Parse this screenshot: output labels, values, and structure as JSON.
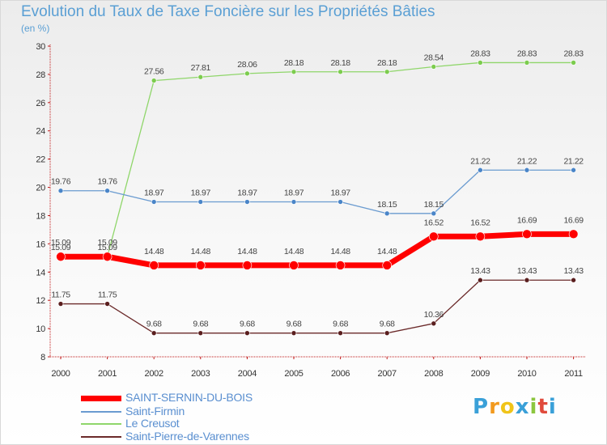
{
  "header": {
    "title": "Evolution du Taux de Taxe Foncière sur les Propriétés Bâties",
    "subtitle": "(en %)"
  },
  "logo": {
    "letters": [
      "P",
      "r",
      "o",
      "x",
      "i",
      "t",
      "i"
    ]
  },
  "chart_data": {
    "type": "line",
    "title": "Evolution du Taux de Taxe Foncière sur les Propriétés Bâties",
    "ylabel": "(en %)",
    "xlabel": "",
    "x": [
      "2000",
      "2001",
      "2002",
      "2003",
      "2004",
      "2005",
      "2006",
      "2007",
      "2008",
      "2009",
      "2010",
      "2011"
    ],
    "ylim": [
      8,
      30
    ],
    "yticks": [
      8,
      10,
      12,
      14,
      16,
      18,
      20,
      22,
      24,
      26,
      28,
      30
    ],
    "grid": false,
    "legend": "bottom-left",
    "series": [
      {
        "name": "SAINT-SERNIN-DU-BOIS",
        "color": "#ff0000",
        "values": [
          15.09,
          15.09,
          14.48,
          14.48,
          14.48,
          14.48,
          14.48,
          14.48,
          16.52,
          16.52,
          16.69,
          16.69
        ],
        "labels": [
          "15.09",
          "15.09",
          "14.48",
          "14.48",
          "14.48",
          "14.48",
          "14.48",
          "14.48",
          "16.52",
          "16.52",
          "16.69",
          "16.69"
        ]
      },
      {
        "name": "Saint-Firmin",
        "color": "#6a9bd0",
        "values": [
          19.76,
          19.76,
          18.97,
          18.97,
          18.97,
          18.97,
          18.97,
          18.15,
          18.15,
          21.22,
          21.22,
          21.22
        ],
        "labels": [
          "19.76",
          "19.76",
          "18.97",
          "18.97",
          "18.97",
          "18.97",
          "18.97",
          "18.15",
          "18.15",
          "21.22",
          "21.22",
          "21.22"
        ]
      },
      {
        "name": "Le Creusot",
        "color": "#8fd66a",
        "values": [
          15.09,
          15.09,
          27.56,
          27.81,
          28.06,
          28.18,
          28.18,
          28.18,
          28.54,
          28.83,
          28.83,
          28.83
        ],
        "labels": [
          "15.09",
          "15.09",
          "27.56",
          "27.81",
          "28.06",
          "28.18",
          "28.18",
          "28.18",
          "28.54",
          "28.83",
          "28.83",
          "28.83"
        ]
      },
      {
        "name": "Saint-Pierre-de-Varennes",
        "color": "#6b2a2a",
        "values": [
          11.75,
          11.75,
          9.68,
          9.68,
          9.68,
          9.68,
          9.68,
          9.68,
          10.36,
          13.43,
          13.43,
          13.43
        ],
        "labels": [
          "11.75",
          "11.75",
          "9.68",
          "9.68",
          "9.68",
          "9.68",
          "9.68",
          "9.68",
          "10.36",
          "13.43",
          "13.43",
          "13.43"
        ]
      }
    ]
  }
}
